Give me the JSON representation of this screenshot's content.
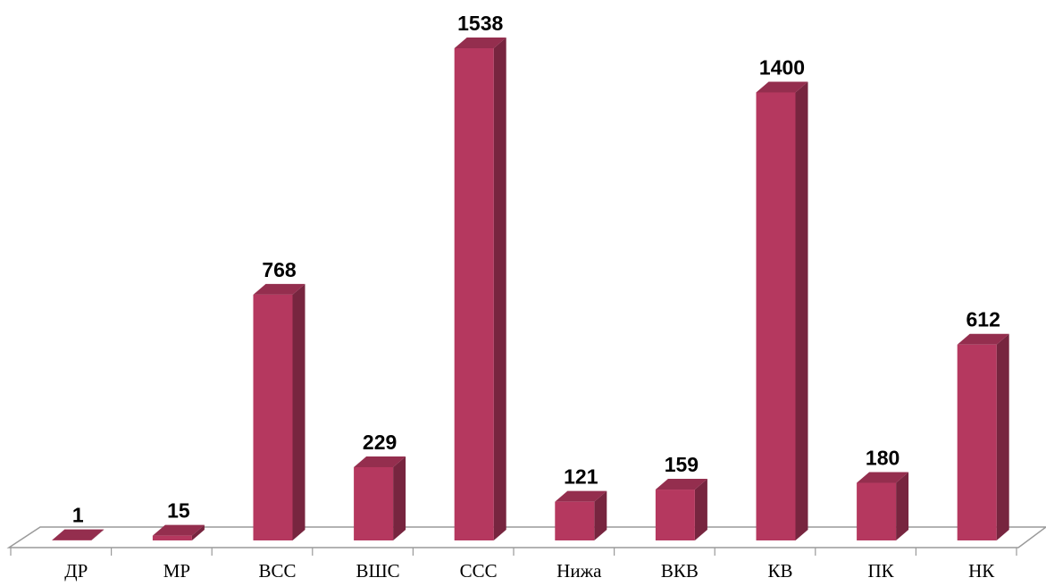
{
  "chart_data": {
    "type": "bar",
    "categories": [
      "ДР",
      "МР",
      "ВСС",
      "ВШС",
      "ССС",
      "Нижа",
      "ВКВ",
      "КВ",
      "ПК",
      "НК"
    ],
    "values": [
      1,
      15,
      768,
      229,
      1538,
      121,
      159,
      1400,
      180,
      612
    ],
    "color": "#b5385f"
  }
}
